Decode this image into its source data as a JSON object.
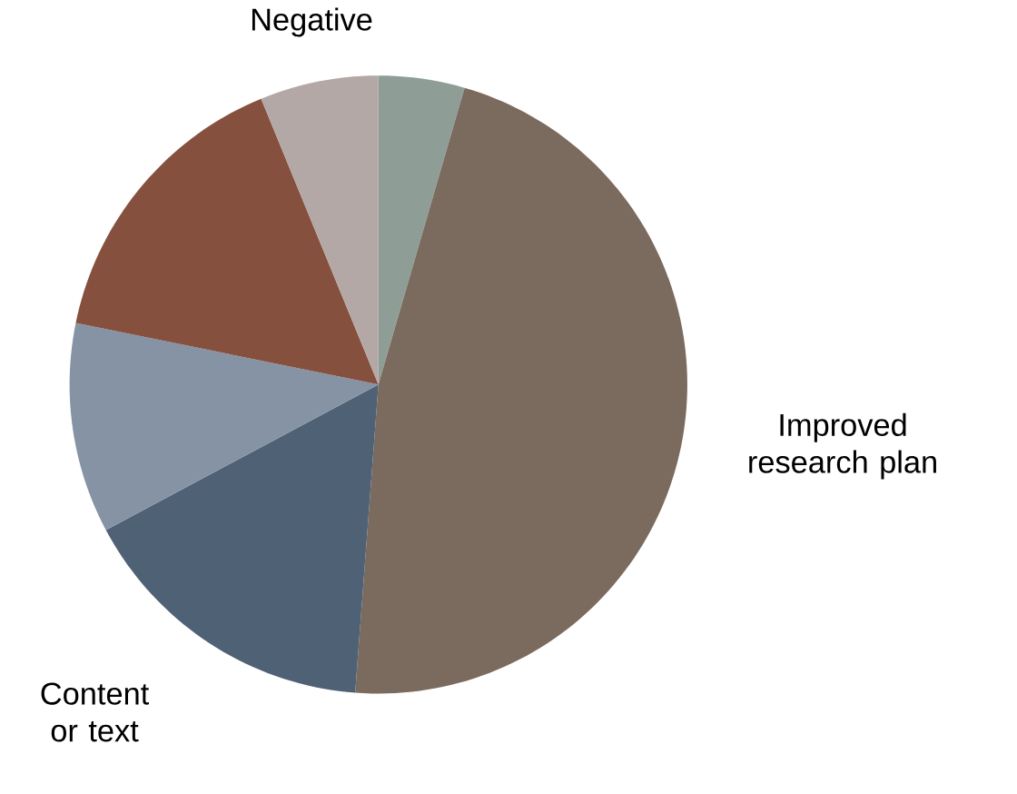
{
  "chart_data": {
    "type": "pie",
    "categories": [
      null,
      "Improved research plan",
      "Content or text",
      null,
      null,
      "Negative"
    ],
    "values": [
      4.5,
      46.7,
      16,
      11,
      15.6,
      6.2
    ],
    "colors": [
      "#8e9e97",
      "#7b6a5e",
      "#4f6175",
      "#8593a5",
      "#86503f",
      "#b3a8a6"
    ]
  }
}
